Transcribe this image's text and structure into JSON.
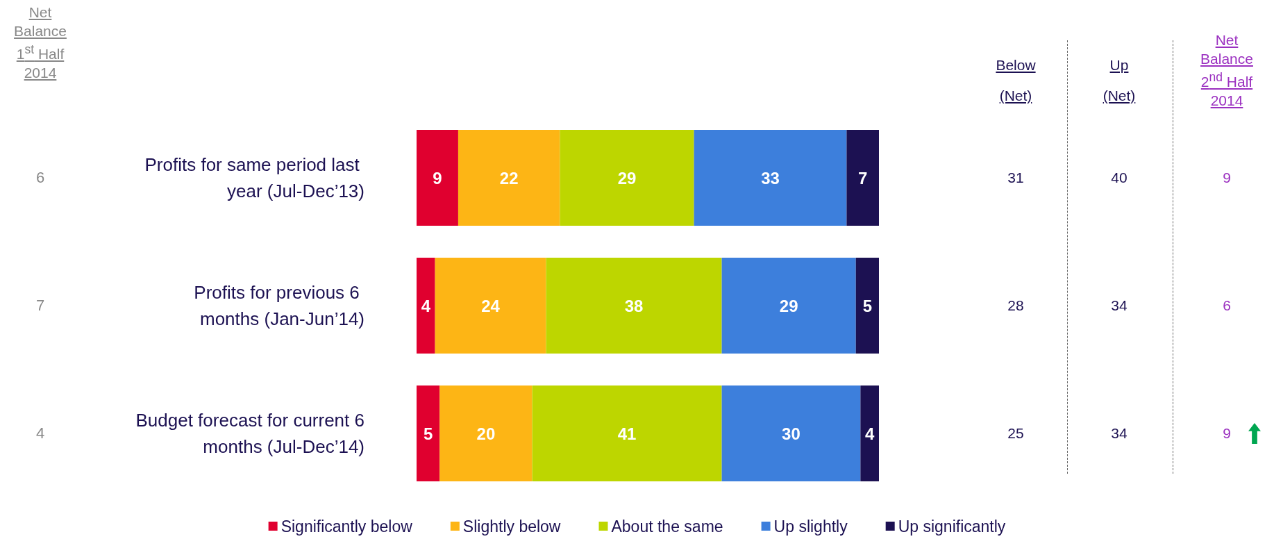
{
  "chart_data": {
    "type": "bar",
    "orientation": "horizontal",
    "stacked": true,
    "data_labels": true,
    "legend": "bottom",
    "categories": [
      "Profits for same period last year (Jul-Dec’13)",
      "Profits for previous 6 months (Jan-Jun’14)",
      "Budget forecast for current 6 months (Jul-Dec’14)"
    ],
    "series": [
      {
        "name": "Significantly below",
        "color": "#e0002f",
        "values": [
          9,
          4,
          5
        ]
      },
      {
        "name": "Slightly below",
        "color": "#fdb515",
        "values": [
          22,
          24,
          20
        ]
      },
      {
        "name": "About the same",
        "color": "#bdd600",
        "values": [
          29,
          38,
          41
        ]
      },
      {
        "name": "Up slightly",
        "color": "#3d7fdc",
        "values": [
          33,
          29,
          30
        ]
      },
      {
        "name": "Up significantly",
        "color": "#1c1152",
        "values": [
          7,
          5,
          4
        ]
      }
    ],
    "annotations": [
      "Net Balance 1$^{st}$ Half 2014",
      "6",
      "7",
      "4",
      "Below (Net)",
      "31",
      "28",
      "25",
      "Up (Net)",
      "40",
      "34",
      "34",
      "Net Balance 2$^{nd}$ Half 2014",
      "9",
      "6",
      "9"
    ]
  }
}
